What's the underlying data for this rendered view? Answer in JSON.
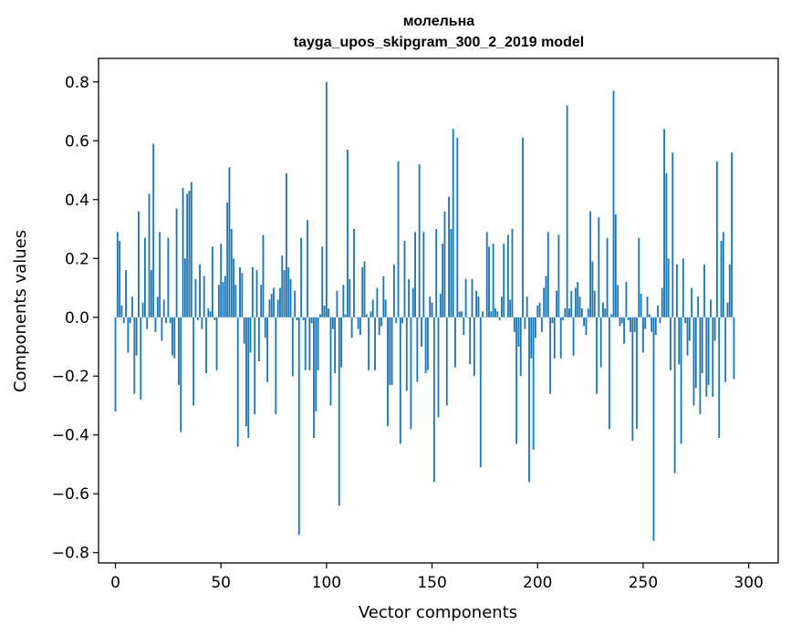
{
  "chart_data": {
    "type": "bar",
    "title_line1": "молельна",
    "title_line2": "tayga_upos_skipgram_300_2_2019 model",
    "xlabel": "Vector components",
    "ylabel": "Components values",
    "xlim": [
      -8,
      314
    ],
    "ylim": [
      -0.835,
      0.88
    ],
    "xticks": [
      0,
      50,
      100,
      150,
      200,
      250,
      300
    ],
    "yticks": [
      0.8,
      0.6,
      0.4,
      0.2,
      0.0,
      -0.2,
      -0.4,
      -0.6,
      -0.8
    ],
    "ytick_labels": [
      "0.8",
      "0.6",
      "0.4",
      "0.2",
      "0.0",
      "−0.2",
      "−0.4",
      "−0.6",
      "−0.8"
    ],
    "bar_color": "#1f77b4",
    "values": [
      -0.32,
      0.29,
      0.26,
      0.04,
      -0.02,
      0.16,
      -0.12,
      -0.02,
      0.07,
      -0.26,
      -0.13,
      0.36,
      -0.28,
      0.05,
      0.27,
      -0.04,
      0.42,
      0.16,
      0.59,
      -0.05,
      0.07,
      0.29,
      -0.08,
      0.06,
      -0.02,
      0.27,
      -0.02,
      -0.13,
      -0.14,
      0.37,
      -0.23,
      -0.39,
      0.44,
      0.2,
      0.42,
      0.43,
      0.46,
      -0.3,
      0.13,
      -0.01,
      0.18,
      -0.04,
      0.14,
      -0.19,
      0.03,
      0.02,
      0.24,
      -0.01,
      -0.18,
      0.11,
      0.25,
      0.12,
      0.14,
      0.39,
      0.51,
      0.3,
      0.2,
      0.11,
      -0.44,
      0.17,
      0.15,
      -0.09,
      -0.37,
      -0.41,
      -0.12,
      0.17,
      -0.33,
      0.16,
      -0.15,
      0.11,
      0.28,
      -0.07,
      -0.22,
      0.06,
      0.08,
      0.1,
      -0.33,
      0.06,
      0.1,
      0.21,
      0.16,
      0.49,
      0.17,
      0.13,
      -0.2,
      0.09,
      -0.01,
      -0.74,
      0.27,
      -0.01,
      -0.18,
      0.33,
      -0.18,
      -0.02,
      -0.41,
      -0.32,
      -0.18,
      0.01,
      0.24,
      0.04,
      0.8,
      0.03,
      -0.3,
      -0.04,
      -0.19,
      0.09,
      -0.64,
      -0.17,
      0.11,
      0.01,
      0.57,
      0.13,
      -0.07,
      0.3,
      0.0,
      -0.04,
      -0.06,
      0.17,
      0.19,
      0.01,
      -0.18,
      0.02,
      0.06,
      -0.18,
      0.1,
      -0.06,
      -0.03,
      0.14,
      0.06,
      -0.37,
      -0.23,
      -0.23,
      0.18,
      -0.02,
      0.53,
      -0.43,
      -0.02,
      0.26,
      -0.25,
      0.13,
      -0.38,
      0.1,
      0.29,
      -0.22,
      0.52,
      -0.1,
      0.29,
      -0.19,
      -0.18,
      0.07,
      0.05,
      -0.56,
      0.3,
      -0.34,
      0.08,
      0.25,
      0.36,
      -0.3,
      0.41,
      0.3,
      0.64,
      -0.17,
      0.61,
      0.02,
      0.02,
      -0.06,
      0.13,
      0.0,
      -0.16,
      0.13,
      -0.2,
      0.09,
      0.07,
      -0.51,
      0.02,
      0.0,
      0.29,
      0.24,
      0.02,
      0.25,
      0.03,
      0.02,
      -0.01,
      0.07,
      0.25,
      0.0,
      0.28,
      0.06,
      0.3,
      -0.05,
      -0.43,
      -0.1,
      -0.2,
      0.61,
      -0.04,
      0.07,
      -0.56,
      -0.14,
      -0.45,
      -0.07,
      0.04,
      0.05,
      -0.05,
      0.1,
      0.14,
      0.29,
      -0.26,
      -0.02,
      -0.14,
      0.09,
      0.28,
      -0.14,
      -0.01,
      0.03,
      0.72,
      0.03,
      0.09,
      -0.13,
      0.1,
      0.12,
      0.07,
      0.03,
      -0.03,
      -0.06,
      0.03,
      0.36,
      0.19,
      0.09,
      -0.26,
      0.34,
      -0.17,
      0.05,
      0.03,
      0.27,
      -0.38,
      0.01,
      0.77,
      0.35,
      0.11,
      -0.03,
      -0.02,
      -0.09,
      0.12,
      -0.01,
      -0.05,
      -0.42,
      -0.05,
      -0.38,
      0.27,
      0.08,
      -0.12,
      -0.04,
      0.07,
      0.01,
      -0.05,
      -0.76,
      -0.06,
      0.04,
      -0.02,
      0.1,
      0.64,
      0.49,
      0.2,
      -0.18,
      0.56,
      -0.53,
      0.18,
      -0.16,
      -0.43,
      0.2,
      -0.02,
      -0.13,
      -0.08,
      0.1,
      -0.3,
      -0.24,
      0.07,
      -0.33,
      -0.19,
      0.18,
      -0.27,
      -0.23,
      0.06,
      -0.27,
      -0.08,
      0.53,
      -0.41,
      0.26,
      0.29,
      -0.22,
      0.05,
      0.18,
      0.56,
      -0.21
    ]
  }
}
